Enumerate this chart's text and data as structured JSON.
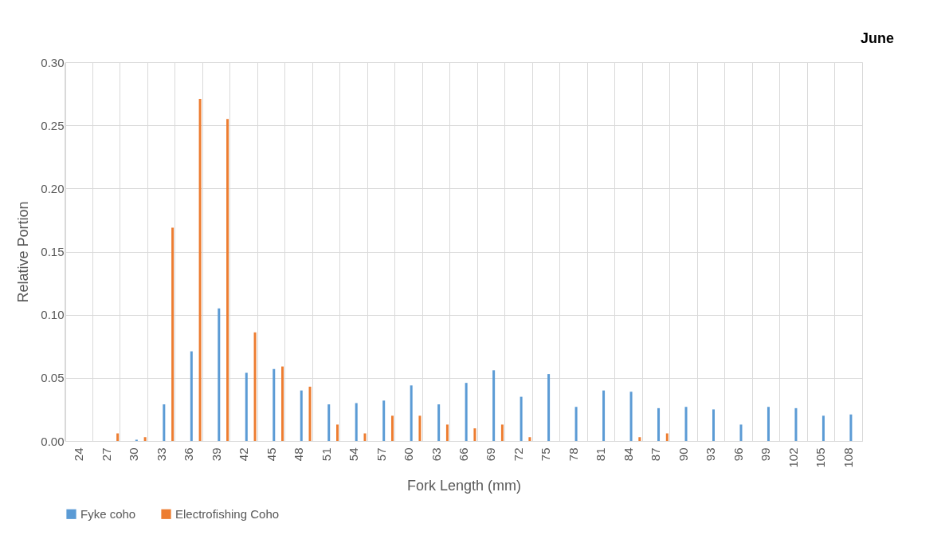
{
  "chart_data": {
    "type": "bar",
    "xlabel": "Fork Length (mm)",
    "ylabel": "Relative Portion",
    "annotations": [
      "June"
    ],
    "categories": [
      "24",
      "27",
      "30",
      "33",
      "36",
      "39",
      "42",
      "45",
      "48",
      "51",
      "54",
      "57",
      "60",
      "63",
      "66",
      "69",
      "72",
      "75",
      "78",
      "81",
      "84",
      "87",
      "90",
      "93",
      "96",
      "99",
      "102",
      "105",
      "108"
    ],
    "series": [
      {
        "name": "Fyke coho",
        "color": "#5b9bd5",
        "values": [
          0,
          0,
          0.001,
          0.029,
          0.071,
          0.105,
          0.054,
          0.057,
          0.04,
          0.029,
          0.03,
          0.032,
          0.044,
          0.029,
          0.046,
          0.056,
          0.035,
          0.053,
          0.027,
          0.04,
          0.039,
          0.026,
          0.027,
          0.025,
          0.013,
          0.027,
          0.026,
          0.02,
          0.021
        ]
      },
      {
        "name": "Electrofishing Coho",
        "color": "#ed7d31",
        "values": [
          0,
          0.006,
          0.003,
          0.169,
          0.271,
          0.255,
          0.086,
          0.059,
          0.043,
          0.013,
          0.006,
          0.02,
          0.02,
          0.013,
          0.01,
          0.013,
          0.003,
          0,
          0,
          0,
          0.003,
          0.006,
          0,
          0,
          0,
          0,
          0,
          0,
          0
        ]
      }
    ],
    "ylim": [
      0,
      0.3
    ],
    "yticks": [
      {
        "value": 0,
        "label": "0.00"
      },
      {
        "value": 0.05,
        "label": "0.05"
      },
      {
        "value": 0.1,
        "label": "0.10"
      },
      {
        "value": 0.15,
        "label": "0.15"
      },
      {
        "value": 0.2,
        "label": "0.20"
      },
      {
        "value": 0.25,
        "label": "0.25"
      },
      {
        "value": 0.3,
        "label": "0.30"
      }
    ],
    "grid": true,
    "legend": "bottom"
  }
}
